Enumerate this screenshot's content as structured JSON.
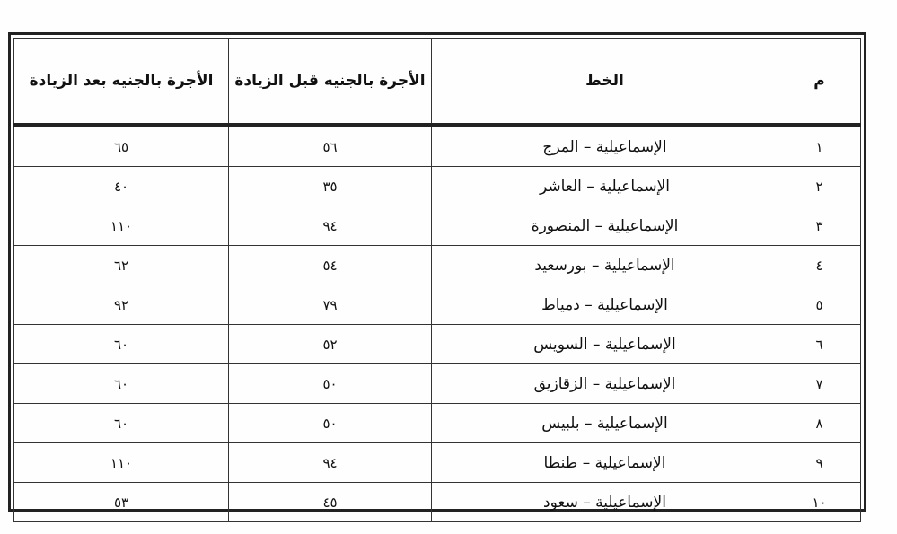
{
  "table": {
    "headers": [
      "م",
      "الخط",
      "الأجرة بالجنيه قبل الزيادة",
      "الأجرة بالجنيه بعد الزيادة"
    ],
    "rows": [
      {
        "num": "١",
        "line": "الإسماعيلية – المرج",
        "before": "٥٦",
        "after": "٦٥"
      },
      {
        "num": "٢",
        "line": "الإسماعيلية – العاشر",
        "before": "٣٥",
        "after": "٤٠"
      },
      {
        "num": "٣",
        "line": "الإسماعيلية – المنصورة",
        "before": "٩٤",
        "after": "١١٠"
      },
      {
        "num": "٤",
        "line": "الإسماعيلية – بورسعيد",
        "before": "٥٤",
        "after": "٦٢"
      },
      {
        "num": "٥",
        "line": "الإسماعيلية – دمياط",
        "before": "٧٩",
        "after": "٩٢"
      },
      {
        "num": "٦",
        "line": "الإسماعيلية – السويس",
        "before": "٥٢",
        "after": "٦٠"
      },
      {
        "num": "٧",
        "line": "الإسماعيلية – الزقازيق",
        "before": "٥٠",
        "after": "٦٠"
      },
      {
        "num": "٨",
        "line": "الإسماعيلية – بلبيس",
        "before": "٥٠",
        "after": "٦٠"
      },
      {
        "num": "٩",
        "line": "الإسماعيلية – طنطا",
        "before": "٩٤",
        "after": "١١٠"
      },
      {
        "num": "١٠",
        "line": "الإسماعيلية – سعود",
        "before": "٤٥",
        "after": "٥٣"
      }
    ]
  }
}
